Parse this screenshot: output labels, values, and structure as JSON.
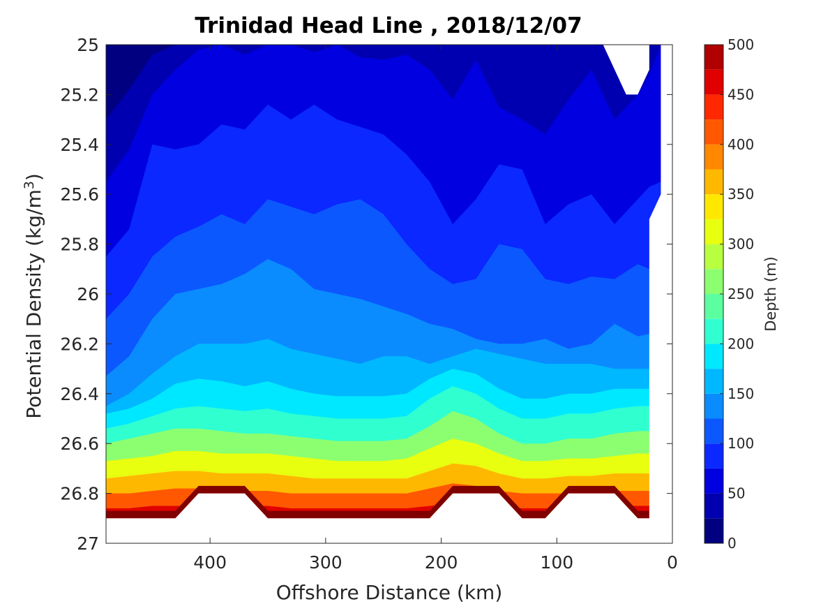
{
  "chart_data": {
    "type": "contourf",
    "title": "Trinidad Head Line , 2018/12/07",
    "xlabel": "Offshore Distance (km)",
    "ylabel": "Potential Density (kg/m",
    "ylabel_superscript": "3",
    "ylabel_close": ")",
    "x_axis": {
      "range": [
        490,
        0
      ],
      "reversed": true,
      "ticks": [
        400,
        300,
        200,
        100,
        0
      ],
      "tick_labels": [
        "400",
        "300",
        "200",
        "100",
        "0"
      ]
    },
    "y_axis": {
      "range": [
        25,
        27
      ],
      "reversed": true,
      "ticks": [
        25,
        25.2,
        25.4,
        25.6,
        25.8,
        26,
        26.2,
        26.4,
        26.6,
        26.8,
        27
      ],
      "tick_labels": [
        "25",
        "25.2",
        "25.4",
        "25.6",
        "25.8",
        "26",
        "26.2",
        "26.4",
        "26.6",
        "26.8",
        "27"
      ]
    },
    "colorbar": {
      "label": "Depth (m)",
      "range": [
        0,
        500
      ],
      "step": 25,
      "ticks": [
        0,
        50,
        100,
        150,
        200,
        250,
        300,
        350,
        400,
        450,
        500
      ],
      "tick_labels": [
        "0",
        "50",
        "100",
        "150",
        "200",
        "250",
        "300",
        "350",
        "400",
        "450",
        "500"
      ],
      "colormap": "jet"
    },
    "colors": {
      "jet": [
        "#000080",
        "#0000b0",
        "#0000e0",
        "#0a28ff",
        "#0c58ff",
        "#0a8cff",
        "#00b8ff",
        "#00e8ff",
        "#30ffd0",
        "#5cffa0",
        "#8cff70",
        "#b8ff40",
        "#e8ff10",
        "#ffe800",
        "#ffb800",
        "#ff8800",
        "#ff5800",
        "#ff2800",
        "#e00000",
        "#b00000",
        "#800000"
      ]
    },
    "stations_km": [
      490,
      470,
      450,
      430,
      410,
      390,
      370,
      350,
      330,
      310,
      290,
      270,
      250,
      230,
      210,
      190,
      170,
      150,
      130,
      110,
      90,
      70,
      50,
      30,
      20,
      10
    ],
    "isopycnal_depth_contours": [
      {
        "depth": 25,
        "density": [
          25.3,
          25.18,
          25.04,
          25.0,
          25.0,
          25.0,
          25.0,
          25.0,
          25.0,
          25.0,
          25.0,
          25.0,
          25.0,
          25.0,
          25.0,
          25.0,
          25.0,
          25.0,
          25.0,
          25.0,
          25.0,
          25.0,
          25.0,
          25.0,
          25.0,
          25.0
        ]
      },
      {
        "depth": 50,
        "density": [
          25.55,
          25.42,
          25.2,
          25.1,
          25.02,
          25.0,
          25.04,
          25.0,
          25.0,
          25.03,
          25.0,
          25.05,
          25.06,
          25.04,
          25.1,
          25.22,
          25.06,
          25.25,
          25.3,
          25.36,
          25.22,
          25.1,
          25.3,
          25.2,
          25.12,
          25.0
        ]
      },
      {
        "depth": 75,
        "density": [
          25.85,
          25.74,
          25.4,
          25.42,
          25.4,
          25.32,
          25.34,
          25.24,
          25.3,
          25.24,
          25.3,
          25.33,
          25.36,
          25.44,
          25.55,
          25.72,
          25.62,
          25.48,
          25.5,
          25.72,
          25.64,
          25.6,
          25.72,
          25.62,
          25.57,
          25.55
        ]
      },
      {
        "depth": 100,
        "density": [
          26.1,
          26.0,
          25.85,
          25.77,
          25.73,
          25.68,
          25.72,
          25.62,
          25.65,
          25.68,
          25.64,
          25.62,
          25.68,
          25.8,
          25.9,
          25.96,
          25.94,
          25.8,
          25.82,
          25.94,
          25.96,
          25.93,
          25.94,
          25.88,
          25.9,
          25.9
        ]
      },
      {
        "depth": 125,
        "density": [
          26.33,
          26.25,
          26.1,
          26.0,
          25.98,
          25.96,
          25.92,
          25.86,
          25.9,
          25.98,
          26.0,
          26.02,
          26.05,
          26.08,
          26.12,
          26.14,
          26.18,
          26.2,
          26.2,
          26.18,
          26.22,
          26.2,
          26.12,
          26.17,
          26.16,
          26.16
        ]
      },
      {
        "depth": 150,
        "density": [
          26.45,
          26.4,
          26.32,
          26.25,
          26.2,
          26.2,
          26.2,
          26.18,
          26.22,
          26.24,
          26.26,
          26.28,
          26.25,
          26.25,
          26.28,
          26.25,
          26.22,
          26.24,
          26.26,
          26.28,
          26.28,
          26.28,
          26.3,
          26.3,
          26.3,
          26.3
        ]
      },
      {
        "depth": 175,
        "density": [
          26.48,
          26.46,
          26.42,
          26.36,
          26.34,
          26.35,
          26.37,
          26.35,
          26.38,
          26.4,
          26.41,
          26.41,
          26.41,
          26.4,
          26.34,
          26.3,
          26.32,
          26.38,
          26.42,
          26.42,
          26.4,
          26.4,
          26.38,
          26.38,
          26.38,
          26.38
        ]
      },
      {
        "depth": 200,
        "density": [
          26.54,
          26.52,
          26.49,
          26.46,
          26.45,
          26.46,
          26.47,
          26.46,
          26.48,
          26.49,
          26.5,
          26.5,
          26.5,
          26.49,
          26.42,
          26.37,
          26.4,
          26.46,
          26.5,
          26.5,
          26.48,
          26.48,
          26.46,
          26.45,
          26.45,
          26.45
        ]
      },
      {
        "depth": 250,
        "density": [
          26.6,
          26.58,
          26.56,
          26.54,
          26.54,
          26.55,
          26.56,
          26.56,
          26.57,
          26.58,
          26.59,
          26.59,
          26.59,
          26.58,
          26.53,
          26.47,
          26.5,
          26.56,
          26.6,
          26.6,
          26.58,
          26.58,
          26.56,
          26.55,
          26.55,
          26.55
        ]
      },
      {
        "depth": 300,
        "density": [
          26.67,
          26.66,
          26.65,
          26.63,
          26.63,
          26.64,
          26.64,
          26.64,
          26.65,
          26.66,
          26.67,
          26.67,
          26.67,
          26.66,
          26.62,
          26.58,
          26.6,
          26.64,
          26.67,
          26.67,
          26.66,
          26.66,
          26.65,
          26.64,
          26.64,
          26.64
        ]
      },
      {
        "depth": 350,
        "density": [
          26.74,
          26.73,
          26.72,
          26.71,
          26.71,
          26.72,
          26.72,
          26.72,
          26.73,
          26.74,
          26.74,
          26.74,
          26.74,
          26.74,
          26.71,
          26.68,
          26.69,
          26.72,
          26.74,
          26.74,
          26.73,
          26.73,
          26.72,
          26.72,
          26.72,
          26.72
        ]
      },
      {
        "depth": 400,
        "density": [
          26.8,
          26.8,
          26.79,
          26.78,
          26.78,
          26.79,
          26.79,
          26.79,
          26.8,
          26.8,
          26.8,
          26.8,
          26.8,
          26.8,
          26.78,
          26.76,
          26.77,
          26.79,
          26.8,
          26.8,
          26.8,
          26.8,
          26.79,
          26.79,
          26.79,
          26.79
        ]
      },
      {
        "depth": 450,
        "density": [
          26.86,
          26.86,
          26.85,
          26.85,
          26.85,
          26.85,
          26.85,
          26.85,
          26.86,
          26.86,
          26.86,
          26.86,
          26.86,
          26.86,
          26.85,
          26.84,
          26.84,
          26.85,
          26.86,
          26.86,
          26.86,
          26.86,
          26.85,
          26.85,
          26.85,
          26.85
        ]
      }
    ],
    "bottom_density": 26.9,
    "bottom_density_shallow_segments": [
      [
        415,
        360
      ],
      [
        200,
        145
      ],
      [
        100,
        45
      ]
    ],
    "shallow_segment_density": 26.8
  }
}
